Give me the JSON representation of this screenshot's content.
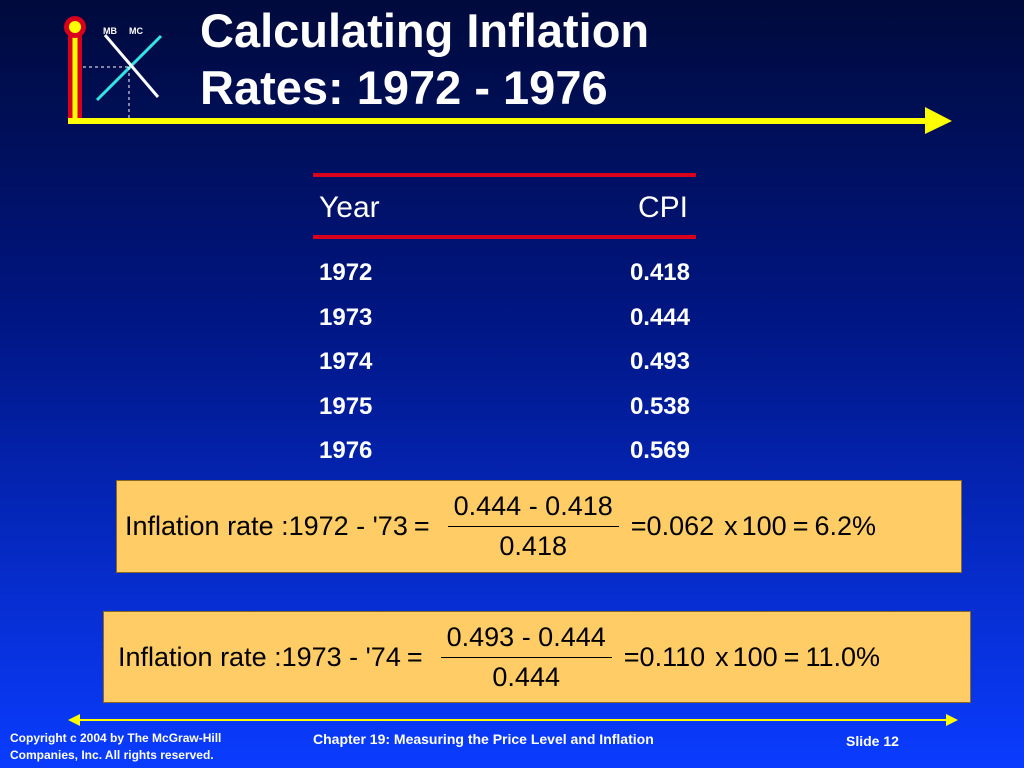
{
  "logo": {
    "mb_label": "MB",
    "mc_label": "MC"
  },
  "title": {
    "line1": "Calculating Inflation",
    "line2": "Rates: 1972 - 1976"
  },
  "table": {
    "headers": [
      "Year",
      "CPI"
    ],
    "rows": [
      {
        "year": "1972",
        "cpi": "0.418"
      },
      {
        "year": "1973",
        "cpi": "0.444"
      },
      {
        "year": "1974",
        "cpi": "0.493"
      },
      {
        "year": "1975",
        "cpi": "0.538"
      },
      {
        "year": "1976",
        "cpi": "0.569"
      }
    ]
  },
  "equations": [
    {
      "label": "Inflation rate :1972 - '73",
      "equals1": "=",
      "numerator": "0.444 - 0.418",
      "denominator": "0.418",
      "equals2": "=",
      "result": "0.062",
      "times": "x",
      "multiplier": "100",
      "equals3": "=",
      "percent": "6.2%"
    },
    {
      "label": "Inflation rate :1973 - '74",
      "equals1": "=",
      "numerator": "0.493 - 0.444",
      "denominator": "0.444",
      "equals2": "=",
      "result": "0.110",
      "times": "x",
      "multiplier": "100",
      "equals3": "=",
      "percent": "11.0%"
    }
  ],
  "footer": {
    "copyright_line1": "Copyright c 2004 by The McGraw-Hill",
    "copyright_line2": "Companies, Inc.  All rights reserved.",
    "chapter": "Chapter 19: Measuring the Price Level and Inflation",
    "slide": "Slide 12"
  },
  "colors": {
    "accent_yellow": "#ffff00",
    "rule_red": "#d8001c",
    "box_fill": "#ffcc66",
    "cyan": "#33e6e6"
  }
}
